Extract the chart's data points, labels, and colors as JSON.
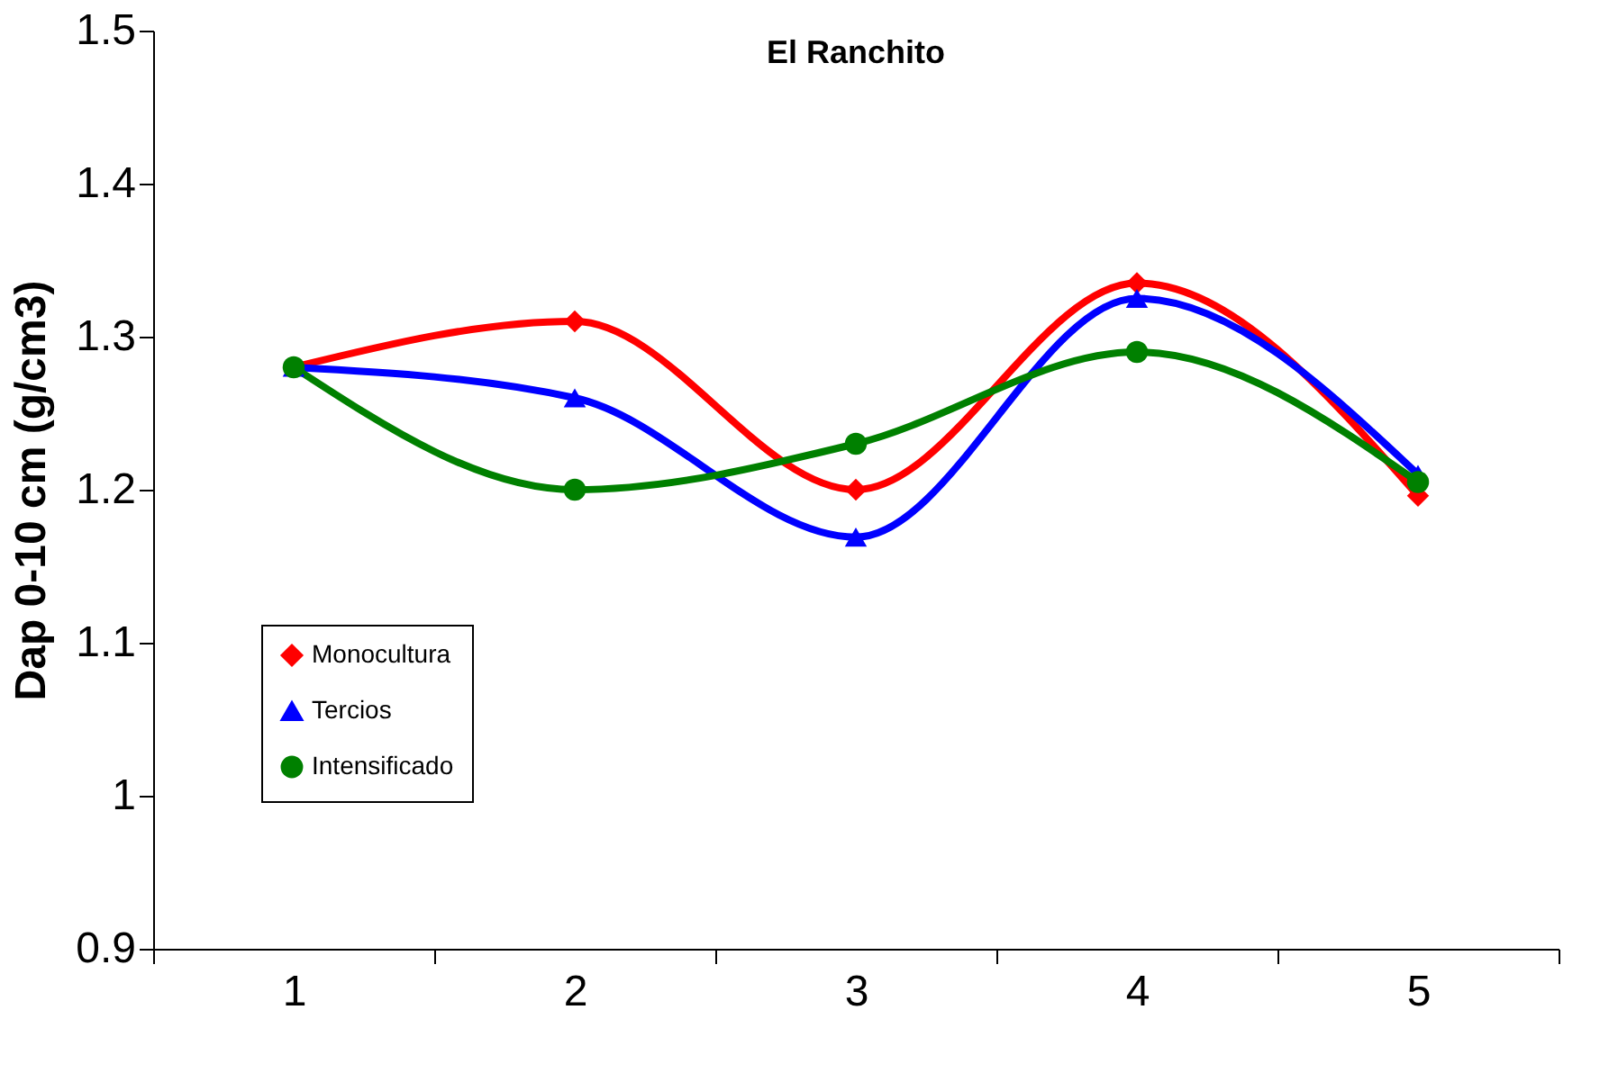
{
  "chart_data": {
    "type": "line",
    "title": "El Ranchito",
    "ylabel": "Dap 0-10 cm (g/cm3)",
    "categories": [
      "1",
      "2",
      "3",
      "4",
      "5"
    ],
    "series": [
      {
        "name": "Monocultura",
        "color": "#ff0000",
        "marker": "diamond",
        "values": [
          1.28,
          1.31,
          1.2,
          1.335,
          1.196
        ]
      },
      {
        "name": "Tercios",
        "color": "#0000ff",
        "marker": "triangle",
        "values": [
          1.28,
          1.26,
          1.169,
          1.325,
          1.21
        ]
      },
      {
        "name": "Intensificado",
        "color": "#008000",
        "marker": "circle",
        "values": [
          1.28,
          1.2,
          1.23,
          1.29,
          1.205
        ]
      }
    ],
    "ylim": [
      0.9,
      1.5
    ],
    "yticks": [
      0.9,
      1,
      1.1,
      1.2,
      1.3,
      1.4,
      1.5
    ],
    "grid": false,
    "legend": "bottom left",
    "line_style": "solid"
  }
}
